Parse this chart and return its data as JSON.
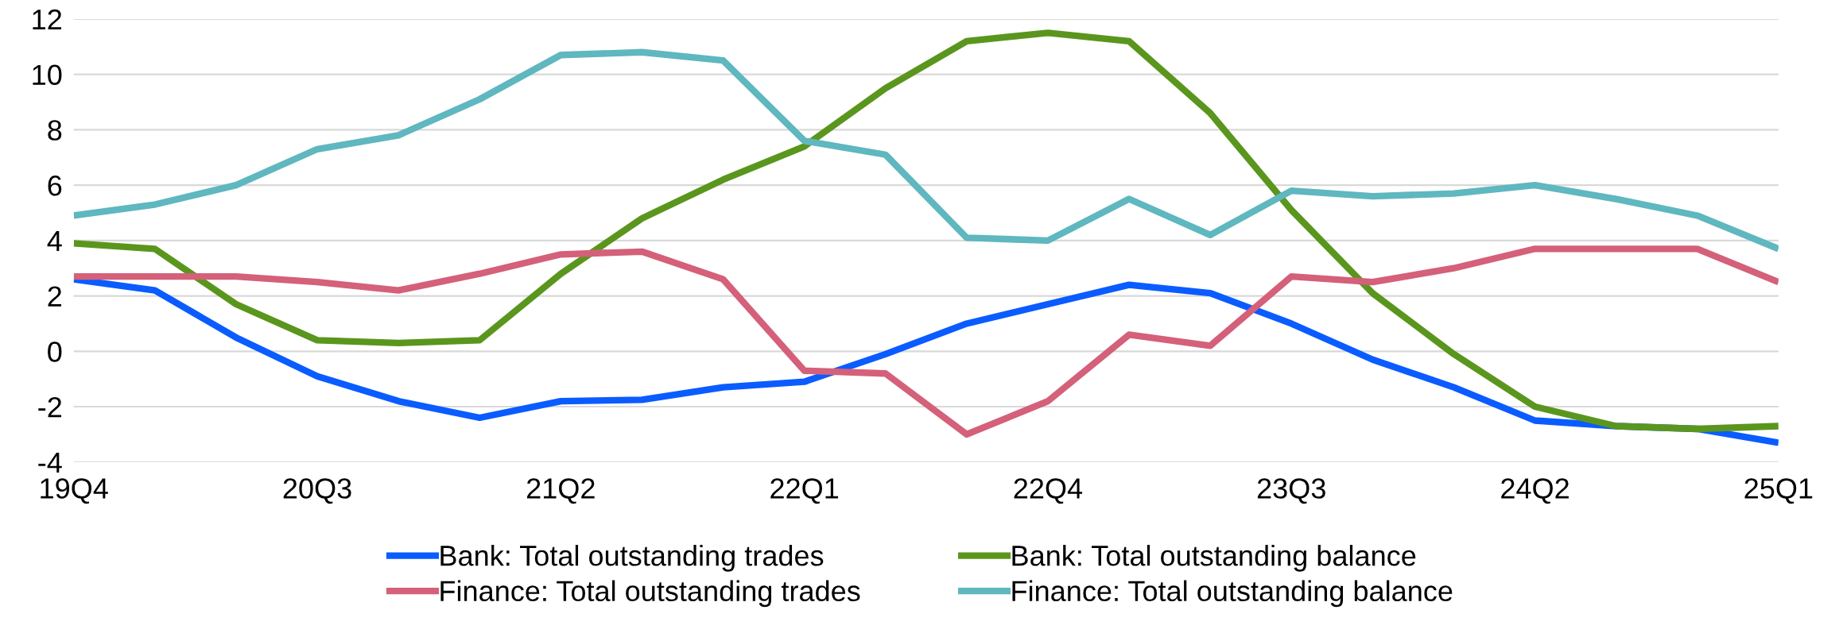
{
  "chart_data": {
    "type": "line",
    "categories": [
      "19Q4",
      null,
      null,
      "20Q3",
      null,
      null,
      "21Q2",
      null,
      null,
      "22Q1",
      null,
      null,
      "22Q4",
      null,
      null,
      "23Q3",
      null,
      null,
      "24Q2",
      null,
      null,
      "25Q1"
    ],
    "series": [
      {
        "name": "Bank: Total outstanding trades",
        "color": "#0a5cff",
        "values": [
          2.6,
          2.2,
          0.5,
          -0.9,
          -1.8,
          -2.4,
          -1.8,
          -1.75,
          -1.3,
          -1.1,
          -0.1,
          1.0,
          1.7,
          2.4,
          2.1,
          1.0,
          -0.3,
          -1.3,
          -2.5,
          -2.7,
          -2.8,
          -3.3
        ]
      },
      {
        "name": "Bank: Total outstanding balance",
        "color": "#5a961e",
        "values": [
          3.9,
          3.7,
          1.7,
          0.4,
          0.3,
          0.4,
          2.8,
          4.8,
          6.2,
          7.4,
          9.5,
          11.2,
          11.5,
          11.2,
          8.6,
          5.1,
          2.1,
          -0.1,
          -2.0,
          -2.7,
          -2.8,
          -2.7
        ]
      },
      {
        "name": "Finance: Total outstanding trades",
        "color": "#d4607a",
        "values": [
          2.7,
          2.7,
          2.7,
          2.5,
          2.2,
          2.8,
          3.5,
          3.6,
          2.6,
          -0.7,
          -0.8,
          -3.0,
          -1.8,
          0.6,
          0.2,
          2.7,
          2.5,
          3.0,
          3.7,
          3.7,
          3.7,
          2.5
        ]
      },
      {
        "name": "Finance: Total outstanding balance",
        "color": "#5fb7bf",
        "values": [
          4.9,
          5.3,
          6.0,
          7.3,
          7.8,
          9.1,
          10.7,
          10.8,
          10.5,
          7.6,
          7.1,
          4.1,
          4.0,
          5.5,
          4.2,
          5.8,
          5.6,
          5.7,
          6.0,
          5.5,
          4.9,
          3.7
        ]
      }
    ],
    "ylim": [
      -4,
      12
    ],
    "yticks": [
      -4,
      -2,
      0,
      2,
      4,
      6,
      8,
      10,
      12
    ],
    "grid": "y",
    "legend": "bottom",
    "marker": "none",
    "line_style": "solid"
  }
}
